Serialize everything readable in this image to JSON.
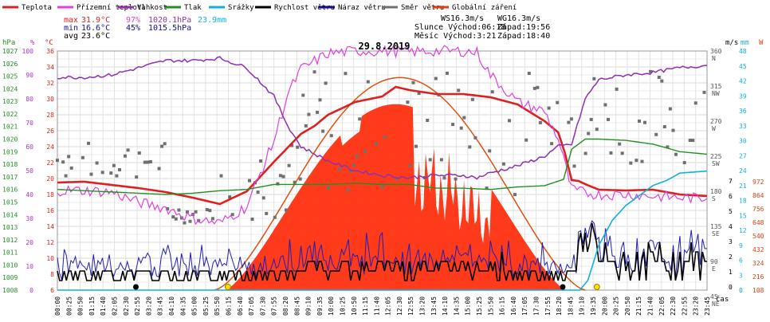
{
  "chart_data": {
    "type": "line",
    "title": "29.8.2019",
    "legend": [
      {
        "name": "Teplota",
        "color": "#e02020"
      },
      {
        "name": "Přízemní teplota",
        "color": "#e040e0"
      },
      {
        "name": "Vlhkost",
        "color": "#9030b0"
      },
      {
        "name": "Tlak",
        "color": "#209020"
      },
      {
        "name": "Srážky",
        "color": "#10b0e0"
      },
      {
        "name": "Rychlost větru",
        "color": "#000000"
      },
      {
        "name": "Náraz větru",
        "color": "#101090"
      },
      {
        "name": "Směr větru",
        "color": "#707070"
      },
      {
        "name": "Globální záření",
        "color": "#e04010"
      }
    ],
    "stats": {
      "max": {
        "label": "max",
        "temp": "31.9°C",
        "hum": "97%",
        "press": "1020.1hPa",
        "rain": "23.9mm"
      },
      "min": {
        "label": "min",
        "temp": "16.6°C",
        "hum": "45%",
        "press": "1015.5hPa"
      },
      "avg": {
        "label": "avg",
        "temp": "23.6°C"
      }
    },
    "info": {
      "ws": "WS16.3m/s",
      "wg": "WG16.3m/s",
      "sun": "Slunce Východ:06:18",
      "sun_set": "Západ:19:56",
      "moon": "Měsíc Východ:3:21",
      "moon_set": "Západ:18:40"
    },
    "axes": {
      "press": {
        "unit": "hPa",
        "min": 1008,
        "max": 1027,
        "ticks": [
          "1027",
          "1026",
          "1025",
          "1024",
          "1023",
          "1022",
          "1021",
          "1020",
          "1019",
          "1018",
          "1017",
          "1016",
          "1015",
          "1014",
          "1013",
          "1012",
          "1011",
          "1010",
          "1009",
          "1008"
        ]
      },
      "hum": {
        "unit": "%",
        "min": 0,
        "max": 100,
        "ticks": [
          "100",
          "90",
          "80",
          "70",
          "60",
          "50",
          "40",
          "30",
          "20",
          "10",
          "0"
        ]
      },
      "temp": {
        "unit": "°C",
        "min": 6,
        "max": 36,
        "ticks": [
          "36",
          "34",
          "32",
          "30",
          "28",
          "26",
          "24",
          "22",
          "20",
          "18",
          "16",
          "14",
          "12",
          "10",
          "8",
          "6"
        ]
      },
      "dir": {
        "unit": "m/s",
        "ticks": [
          [
            "360",
            "N"
          ],
          [
            "315",
            "NW"
          ],
          [
            "270",
            "W"
          ],
          [
            "225",
            "SW"
          ],
          [
            "180",
            "S"
          ],
          [
            "135",
            "SE"
          ],
          [
            "90",
            "E"
          ],
          [
            "45",
            "NE"
          ]
        ]
      },
      "wind": {
        "ticks": [
          "7",
          "6",
          "5",
          "4",
          "3",
          "2",
          "1",
          "0"
        ]
      },
      "rain": {
        "unit": "mm",
        "min": 0,
        "max": 48,
        "ticks": [
          "48",
          "45",
          "42",
          "39",
          "36",
          "33",
          "30",
          "27",
          "24",
          "21",
          "18",
          "15",
          "12",
          "9",
          "6",
          "3",
          "0"
        ]
      },
      "rad": {
        "unit": "W",
        "min": 0,
        "max": 1080,
        "ticks": [
          "972",
          "864",
          "756",
          "648",
          "540",
          "432",
          "324",
          "216",
          "108"
        ]
      },
      "time": {
        "unit": "čas",
        "ticks": [
          "00:00",
          "00:25",
          "00:50",
          "01:15",
          "01:40",
          "02:05",
          "02:30",
          "02:55",
          "03:20",
          "03:45",
          "04:10",
          "04:35",
          "05:00",
          "05:25",
          "05:50",
          "06:15",
          "06:40",
          "07:05",
          "07:30",
          "07:55",
          "08:20",
          "08:45",
          "09:10",
          "09:35",
          "10:00",
          "10:25",
          "10:50",
          "11:15",
          "11:40",
          "12:05",
          "12:30",
          "12:55",
          "13:20",
          "13:45",
          "14:10",
          "14:35",
          "15:00",
          "15:25",
          "15:50",
          "16:15",
          "16:40",
          "17:05",
          "17:30",
          "17:55",
          "18:20",
          "18:45",
          "19:10",
          "19:35",
          "20:00",
          "20:25",
          "20:50",
          "21:15",
          "21:40",
          "22:05",
          "22:30",
          "22:55",
          "23:20",
          "23:45"
        ]
      }
    },
    "series": [
      {
        "name": "Teplota",
        "unit": "°C",
        "x": [
          0,
          1,
          2,
          3,
          4,
          5,
          6,
          7,
          8,
          9,
          9.5,
          10,
          11,
          12,
          12.5,
          13,
          14,
          15,
          16,
          17,
          18,
          18.5,
          18.75,
          19,
          19.25,
          19.5,
          20,
          21,
          22,
          23,
          24
        ],
        "y": [
          19.5,
          19.6,
          19.2,
          18.8,
          18.3,
          17.6,
          16.8,
          18.4,
          22.1,
          25.6,
          26.6,
          28.0,
          29.6,
          30.3,
          31.5,
          31.1,
          30.6,
          30.6,
          30.2,
          29.3,
          27.2,
          25.8,
          23.2,
          19.8,
          19.7,
          19.3,
          18.6,
          18.5,
          18.6,
          18.0,
          17.8
        ]
      },
      {
        "name": "Přízemní teplota",
        "unit": "°C",
        "x": [
          0,
          1,
          2,
          3,
          4,
          5,
          6,
          7,
          8,
          8.5,
          9,
          10,
          11,
          12,
          13,
          14,
          15,
          15.5,
          16,
          17,
          18,
          18.5,
          19,
          19.5,
          20,
          21,
          22,
          23,
          24
        ],
        "y": [
          18.5,
          18.5,
          18.3,
          17.0,
          16.3,
          15.0,
          14.4,
          16.5,
          24.8,
          30.5,
          33.7,
          35.7,
          36.0,
          36.0,
          35.9,
          36.0,
          36.0,
          35.8,
          33.0,
          29.6,
          28.4,
          25.0,
          18.6,
          18.2,
          18.0,
          18.0,
          17.8,
          17.6,
          17.5
        ]
      },
      {
        "name": "Vlhkost",
        "unit": "%",
        "x": [
          0,
          1,
          2,
          3,
          4,
          5,
          6,
          7,
          8,
          8.5,
          9,
          10,
          11,
          12,
          13,
          14,
          15,
          15.5,
          16,
          17,
          18,
          18.5,
          19,
          19.5,
          20,
          21,
          22,
          23,
          24
        ],
        "y": [
          89,
          89,
          90,
          93,
          96,
          96,
          97,
          93,
          81,
          69,
          60,
          54,
          50,
          48,
          47,
          48,
          48,
          47,
          49,
          52,
          56,
          60,
          61,
          80,
          88,
          90,
          91,
          93,
          94
        ]
      },
      {
        "name": "Tlak",
        "unit": "hPa",
        "x": [
          0,
          1,
          2,
          3,
          4,
          5,
          6,
          7,
          8,
          9,
          10,
          11,
          12,
          13,
          14,
          15,
          16,
          17,
          18,
          18.7,
          19,
          19.5,
          20,
          21,
          22,
          23,
          24
        ],
        "y": [
          1016.0,
          1015.9,
          1015.8,
          1015.7,
          1015.6,
          1015.7,
          1015.9,
          1016.0,
          1016.4,
          1016.4,
          1016.4,
          1016.5,
          1016.4,
          1016.4,
          1016.1,
          1016.1,
          1016.0,
          1016.2,
          1016.3,
          1016.8,
          1019.2,
          1020.0,
          1020.0,
          1019.9,
          1019.6,
          1019.0,
          1018.8
        ]
      },
      {
        "name": "Srážky",
        "unit": "mm",
        "x": [
          0,
          19.3,
          19.6,
          20,
          20.5,
          21,
          21.5,
          22,
          22.5,
          23,
          24
        ],
        "y": [
          0,
          0,
          2,
          9,
          14,
          17,
          19,
          21,
          22,
          23.5,
          23.9
        ]
      }
    ]
  }
}
